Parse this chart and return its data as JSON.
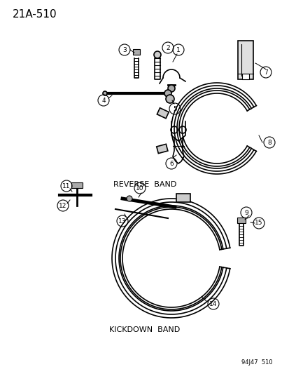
{
  "title_label": "21A-510",
  "reverse_band_label": "REVERSE  BAND",
  "kickdown_band_label": "KICKDOWN  BAND",
  "bottom_ref": "94J47  510",
  "bg_color": "#ffffff",
  "line_color": "#000000",
  "part_numbers": [
    1,
    2,
    3,
    4,
    5,
    6,
    7,
    8,
    9,
    10,
    11,
    12,
    13,
    14,
    15
  ],
  "figsize": [
    4.14,
    5.33
  ],
  "dpi": 100
}
